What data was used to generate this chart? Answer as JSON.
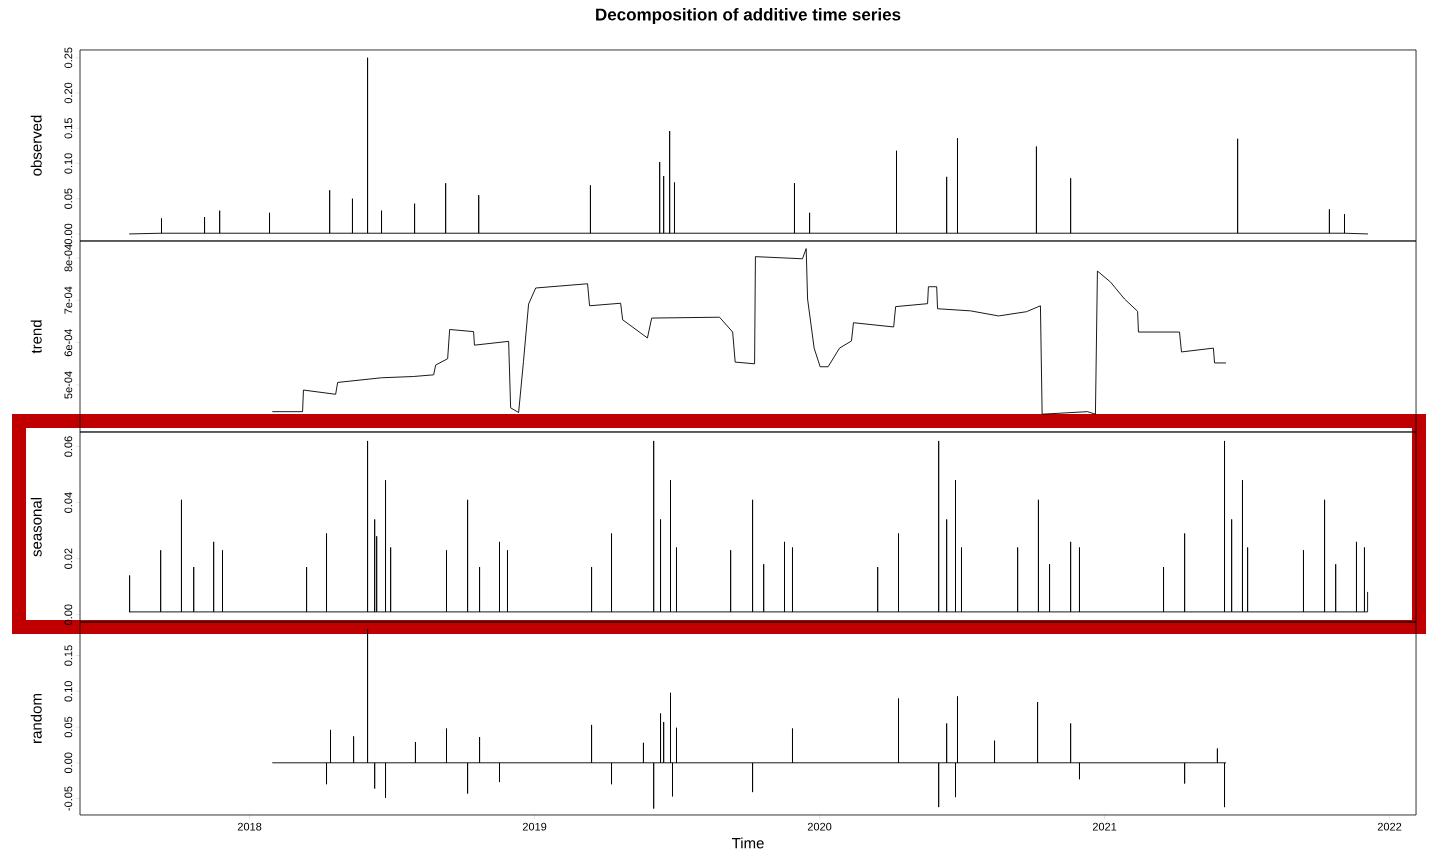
{
  "chart_data": [
    {
      "type": "line",
      "title": "Decomposition of additive time series",
      "ylabel": "observed",
      "tick_labels": "y",
      "xlim": [
        2017.405,
        2022.093
      ],
      "ylim": [
        -0.01,
        0.261
      ],
      "yticks": [
        {
          "value": 0,
          "label": "0.00"
        },
        {
          "value": 0.05,
          "label": "0.05"
        },
        {
          "value": 0.1,
          "label": "0.10"
        },
        {
          "value": 0.15,
          "label": "0.15"
        },
        {
          "value": 0.2,
          "label": "0.20"
        },
        {
          "value": 0.25,
          "label": "0.25"
        }
      ],
      "series": [
        {
          "color": "#000000",
          "x": [
            2017.579,
            2017.691,
            2017.691,
            2017.691,
            2017.842,
            2017.842,
            2017.842,
            2017.895,
            2017.895,
            2017.895,
            2018.07,
            2018.07,
            2018.07,
            2018.281,
            2018.281,
            2018.281,
            2018.361,
            2018.361,
            2018.361,
            2018.414,
            2018.414,
            2018.414,
            2018.463,
            2018.463,
            2018.463,
            2018.579,
            2018.579,
            2018.579,
            2018.688,
            2018.688,
            2018.688,
            2018.804,
            2018.804,
            2018.804,
            2019.196,
            2019.196,
            2019.196,
            2019.439,
            2019.439,
            2019.439,
            2019.453,
            2019.453,
            2019.453,
            2019.474,
            2019.474,
            2019.474,
            2019.491,
            2019.491,
            2019.491,
            2019.912,
            2019.912,
            2019.912,
            2019.965,
            2019.965,
            2019.965,
            2020.27,
            2020.27,
            2020.27,
            2020.446,
            2020.446,
            2020.446,
            2020.484,
            2020.484,
            2020.484,
            2020.761,
            2020.761,
            2020.761,
            2020.881,
            2020.881,
            2020.881,
            2021.467,
            2021.467,
            2021.467,
            2021.789,
            2021.789,
            2021.789,
            2021.842,
            2021.842,
            2021.842,
            2021.923
          ],
          "values": [
            0,
            0.001,
            0.022,
            0.001,
            0.001,
            0.024,
            0.001,
            0.001,
            0.033,
            0.001,
            0.001,
            0.03,
            0.001,
            0.001,
            0.062,
            0.001,
            0.001,
            0.05,
            0.001,
            0.001,
            0.25,
            0.001,
            0.001,
            0.033,
            0.001,
            0.001,
            0.043,
            0.001,
            0.001,
            0.072,
            0.001,
            0.001,
            0.055,
            0.001,
            0.001,
            0.069,
            0.001,
            0.001,
            0.102,
            0.001,
            0.001,
            0.082,
            0.001,
            0.001,
            0.146,
            0.001,
            0.001,
            0.073,
            0.001,
            0.001,
            0.072,
            0.001,
            0.001,
            0.03,
            0.001,
            0.001,
            0.118,
            0.001,
            0.001,
            0.081,
            0.001,
            0.001,
            0.136,
            0.001,
            0.001,
            0.124,
            0.001,
            0.001,
            0.079,
            0.001,
            0.001,
            0.135,
            0.001,
            0.001,
            0.035,
            0.001,
            0.001,
            0.028,
            0.001,
            0
          ]
        }
      ]
    },
    {
      "type": "line",
      "ylabel": "trend",
      "tick_labels": "y",
      "xlim": [
        2017.405,
        2022.093
      ],
      "ylim": [
        0.000389,
        0.00084
      ],
      "yticks": [
        {
          "value": 0.0005,
          "label": "5e-04"
        },
        {
          "value": 0.0006,
          "label": "6e-04"
        },
        {
          "value": 0.0007,
          "label": "7e-04"
        },
        {
          "value": 0.0008,
          "label": "8e-04"
        }
      ],
      "series": [
        {
          "color": "#000000",
          "x": [
            2018.081,
            2018.186,
            2018.189,
            2018.302,
            2018.309,
            2018.463,
            2018.575,
            2018.646,
            2018.653,
            2018.695,
            2018.702,
            2018.786,
            2018.789,
            2018.909,
            2018.916,
            2018.944,
            2018.961,
            2018.979,
            2019.004,
            2019.186,
            2019.193,
            2019.302,
            2019.309,
            2019.396,
            2019.411,
            2019.649,
            2019.695,
            2019.704,
            2019.772,
            2019.775,
            2019.94,
            2019.953,
            2019.958,
            2019.981,
            2020.002,
            2020.03,
            2020.07,
            2020.112,
            2020.119,
            2020.26,
            2020.267,
            2020.379,
            2020.382,
            2020.411,
            2020.414,
            2020.53,
            2020.628,
            2020.726,
            2020.775,
            2020.781,
            2020.94,
            2020.968,
            2020.975,
            2021.021,
            2021.07,
            2021.116,
            2021.119,
            2021.263,
            2021.27,
            2021.382,
            2021.386,
            2021.425
          ],
          "values": [
            0.000437,
            0.000437,
            0.000488,
            0.000478,
            0.000506,
            0.000517,
            0.00052,
            0.000524,
            0.000547,
            0.000562,
            0.000631,
            0.000626,
            0.000594,
            0.000603,
            0.000446,
            0.000435,
            0.000555,
            0.000691,
            0.000729,
            0.000739,
            0.000687,
            0.000693,
            0.000654,
            0.000611,
            0.000658,
            0.00066,
            0.000625,
            0.000554,
            0.00055,
            0.000803,
            0.000798,
            0.000822,
            0.000703,
            0.000587,
            0.000543,
            0.000543,
            0.000587,
            0.000604,
            0.000647,
            0.000637,
            0.000685,
            0.000692,
            0.000732,
            0.000732,
            0.00068,
            0.000675,
            0.000663,
            0.000673,
            0.000687,
            0.000431,
            0.000437,
            0.000431,
            0.000769,
            0.000743,
            0.000703,
            0.000674,
            0.000625,
            0.000625,
            0.000578,
            0.000587,
            0.000552,
            0.000552
          ]
        }
      ]
    },
    {
      "type": "line",
      "ylabel": "seasonal",
      "tick_labels": "y",
      "xlim": [
        2017.405,
        2022.093
      ],
      "ylim": [
        -0.0026,
        0.0652
      ],
      "yticks": [
        {
          "value": 0,
          "label": "0.00"
        },
        {
          "value": 0.02,
          "label": "0.02"
        },
        {
          "value": 0.04,
          "label": "0.04"
        },
        {
          "value": 0.06,
          "label": "0.06"
        }
      ],
      "series": [
        {
          "color": "#000000",
          "x": [
            2017.579,
            2017.579,
            2017.579,
            2017.688,
            2017.688,
            2017.688,
            2017.761,
            2017.761,
            2017.761,
            2017.804,
            2017.804,
            2017.804,
            2017.874,
            2017.874,
            2017.874,
            2017.905,
            2017.905,
            2017.905,
            2018.2,
            2018.2,
            2018.2,
            2018.27,
            2018.27,
            2018.27,
            2018.414,
            2018.414,
            2018.414,
            2018.439,
            2018.439,
            2018.439,
            2018.446,
            2018.446,
            2018.446,
            2018.477,
            2018.477,
            2018.477,
            2018.495,
            2018.495,
            2018.495,
            2018.691,
            2018.691,
            2018.691,
            2018.765,
            2018.765,
            2018.765,
            2018.807,
            2018.807,
            2018.807,
            2018.877,
            2018.877,
            2018.877,
            2018.905,
            2018.905,
            2018.905,
            2019.2,
            2019.2,
            2019.2,
            2019.27,
            2019.27,
            2019.27,
            2019.418,
            2019.418,
            2019.418,
            2019.442,
            2019.442,
            2019.442,
            2019.477,
            2019.477,
            2019.477,
            2019.498,
            2019.498,
            2019.498,
            2019.688,
            2019.688,
            2019.688,
            2019.765,
            2019.765,
            2019.765,
            2019.804,
            2019.804,
            2019.804,
            2019.877,
            2019.877,
            2019.877,
            2019.905,
            2019.905,
            2019.905,
            2020.204,
            2020.204,
            2020.204,
            2020.277,
            2020.277,
            2020.277,
            2020.418,
            2020.418,
            2020.418,
            2020.446,
            2020.446,
            2020.446,
            2020.477,
            2020.477,
            2020.477,
            2020.498,
            2020.498,
            2020.498,
            2020.695,
            2020.695,
            2020.695,
            2020.768,
            2020.768,
            2020.768,
            2020.807,
            2020.807,
            2020.807,
            2020.881,
            2020.881,
            2020.881,
            2020.912,
            2020.912,
            2020.912,
            2021.207,
            2021.207,
            2021.207,
            2021.281,
            2021.281,
            2021.281,
            2021.421,
            2021.421,
            2021.421,
            2021.446,
            2021.446,
            2021.446,
            2021.484,
            2021.484,
            2021.484,
            2021.502,
            2021.502,
            2021.502,
            2021.698,
            2021.698,
            2021.698,
            2021.772,
            2021.772,
            2021.772,
            2021.811,
            2021.811,
            2021.811,
            2021.884,
            2021.884,
            2021.884,
            2021.912,
            2021.912,
            2021.912,
            2021.923,
            2021.923
          ],
          "values": [
            0.001,
            0.014,
            0.001,
            0.001,
            0.023,
            0.001,
            0.001,
            0.041,
            0.001,
            0.001,
            0.017,
            0.001,
            0.001,
            0.026,
            0.001,
            0.001,
            0.023,
            0.001,
            0.001,
            0.017,
            0.001,
            0.001,
            0.029,
            0.001,
            0.001,
            0.062,
            0.001,
            0.001,
            0.034,
            0.001,
            0.001,
            0.028,
            0.001,
            0.001,
            0.048,
            0.001,
            0.001,
            0.024,
            0.001,
            0.001,
            0.023,
            0.001,
            0.001,
            0.041,
            0.001,
            0.001,
            0.017,
            0.001,
            0.001,
            0.026,
            0.001,
            0.001,
            0.023,
            0.001,
            0.001,
            0.017,
            0.001,
            0.001,
            0.029,
            0.001,
            0.001,
            0.062,
            0.001,
            0.001,
            0.034,
            0.001,
            0.001,
            0.048,
            0.001,
            0.001,
            0.024,
            0.001,
            0.001,
            0.023,
            0.001,
            0.001,
            0.041,
            0.001,
            0.001,
            0.018,
            0.001,
            0.001,
            0.026,
            0.001,
            0.001,
            0.024,
            0.001,
            0.001,
            0.017,
            0.001,
            0.001,
            0.029,
            0.001,
            0.001,
            0.062,
            0.001,
            0.001,
            0.034,
            0.001,
            0.001,
            0.048,
            0.001,
            0.001,
            0.024,
            0.001,
            0.001,
            0.024,
            0.001,
            0.001,
            0.041,
            0.001,
            0.001,
            0.018,
            0.001,
            0.001,
            0.026,
            0.001,
            0.001,
            0.024,
            0.001,
            0.001,
            0.017,
            0.001,
            0.001,
            0.029,
            0.001,
            0.001,
            0.062,
            0.001,
            0.001,
            0.034,
            0.001,
            0.001,
            0.048,
            0.001,
            0.001,
            0.024,
            0.001,
            0.001,
            0.023,
            0.001,
            0.001,
            0.041,
            0.001,
            0.001,
            0.018,
            0.001,
            0.001,
            0.026,
            0.001,
            0.001,
            0.024,
            0.001,
            0.001,
            0.008
          ]
        }
      ]
    },
    {
      "type": "line",
      "ylabel": "random",
      "xlabel": "Time",
      "xlim": [
        2017.405,
        2022.093
      ],
      "ylim": [
        -0.073,
        0.197
      ],
      "xticks": [
        2018,
        2019,
        2020,
        2021,
        2022
      ],
      "yticks": [
        {
          "value": -0.05,
          "label": "-0.05"
        },
        {
          "value": 0,
          "label": "0.00"
        },
        {
          "value": 0.05,
          "label": "0.05"
        },
        {
          "value": 0.1,
          "label": "0.10"
        },
        {
          "value": 0.15,
          "label": "0.15"
        }
      ],
      "series": [
        {
          "color": "#000000",
          "x": [
            2018.081,
            2018.27,
            2018.27,
            2018.27,
            2018.284,
            2018.284,
            2018.284,
            2018.365,
            2018.365,
            2018.365,
            2018.414,
            2018.414,
            2018.414,
            2018.439,
            2018.439,
            2018.439,
            2018.477,
            2018.477,
            2018.477,
            2018.582,
            2018.582,
            2018.582,
            2018.691,
            2018.691,
            2018.691,
            2018.765,
            2018.765,
            2018.765,
            2018.807,
            2018.807,
            2018.807,
            2018.877,
            2018.877,
            2018.877,
            2019.2,
            2019.2,
            2019.2,
            2019.27,
            2019.27,
            2019.27,
            2019.382,
            2019.382,
            2019.382,
            2019.418,
            2019.418,
            2019.418,
            2019.442,
            2019.442,
            2019.442,
            2019.453,
            2019.453,
            2019.453,
            2019.477,
            2019.477,
            2019.477,
            2019.484,
            2019.484,
            2019.484,
            2019.498,
            2019.498,
            2019.498,
            2019.765,
            2019.765,
            2019.765,
            2019.905,
            2019.905,
            2019.905,
            2020.277,
            2020.277,
            2020.277,
            2020.418,
            2020.418,
            2020.418,
            2020.446,
            2020.446,
            2020.446,
            2020.477,
            2020.477,
            2020.477,
            2020.484,
            2020.484,
            2020.484,
            2020.614,
            2020.614,
            2020.614,
            2020.765,
            2020.765,
            2020.765,
            2020.881,
            2020.881,
            2020.881,
            2020.912,
            2020.912,
            2020.912,
            2021.281,
            2021.281,
            2021.281,
            2021.396,
            2021.396,
            2021.396,
            2021.421,
            2021.421,
            2021.421,
            2021.425
          ],
          "values": [
            0,
            0,
            -0.03,
            0,
            0,
            0.046,
            0,
            0,
            0.037,
            0,
            0,
            0.187,
            0,
            0,
            -0.036,
            0,
            0,
            -0.049,
            0,
            0,
            0.029,
            0,
            0,
            0.048,
            0,
            0,
            -0.043,
            0,
            0,
            0.036,
            0,
            0,
            -0.027,
            0,
            0,
            0.053,
            0,
            0,
            -0.03,
            0,
            0,
            0.028,
            0,
            0,
            -0.064,
            0,
            0,
            0.069,
            0,
            0,
            0.057,
            0,
            0,
            0.098,
            0,
            0,
            -0.047,
            0,
            0,
            0.049,
            0,
            0,
            -0.041,
            0,
            0,
            0.048,
            0,
            0,
            0.09,
            0,
            0,
            -0.062,
            0,
            0,
            0.055,
            0,
            0,
            -0.048,
            0,
            0,
            0.093,
            0,
            0,
            0.031,
            0,
            0,
            0.085,
            0,
            0,
            0.055,
            0,
            0,
            -0.023,
            0,
            0,
            -0.029,
            0,
            0,
            0.02,
            0,
            0,
            -0.062,
            0,
            0
          ]
        }
      ]
    }
  ]
}
